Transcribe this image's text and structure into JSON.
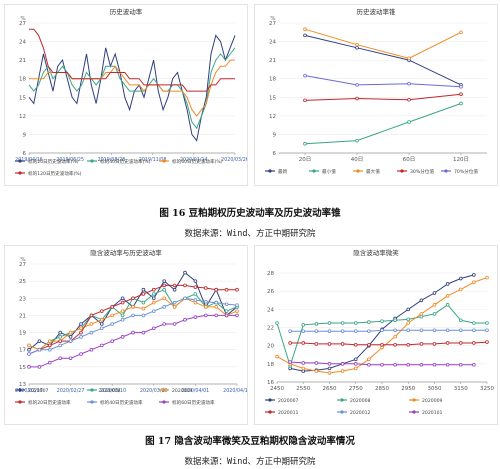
{
  "captions": {
    "fig16": "图 16  豆粕期权历史波动率及历史波动率锥",
    "fig17": "图 17  隐含波动率微笑及豆粕期权隐含波动率情况",
    "source": "数据来源：Wind、方正中期研究院"
  },
  "chart_data": [
    {
      "id": "hv_ts",
      "type": "line",
      "title": "历史波动率",
      "ylabel": "%",
      "ylim": [
        6,
        27
      ],
      "yticks": [
        6,
        9,
        12,
        15,
        18,
        21,
        24,
        27
      ],
      "xlabels": [
        "2019/04/16",
        "2019/06/25",
        "2019/08/28",
        "2019/11/08",
        "2020/01/14",
        "2020/03/26"
      ],
      "series": [
        {
          "name": "标的20日历史波动率(%)",
          "color": "#2f3f7f",
          "values": [
            15,
            14,
            18,
            22,
            19,
            16,
            20,
            21,
            18,
            15,
            14,
            18,
            22,
            17,
            14,
            18,
            23,
            20,
            22,
            19,
            15,
            13,
            16,
            17,
            15,
            18,
            21,
            16,
            13,
            15,
            18,
            19,
            16,
            13,
            9,
            8,
            12,
            15,
            22,
            25,
            24,
            21,
            23,
            25
          ]
        },
        {
          "name": "标的40日历史波动率(%)",
          "color": "#3aa687",
          "values": [
            17,
            16,
            17,
            19,
            20,
            18,
            19,
            20,
            19,
            17,
            16,
            17,
            19,
            18,
            17,
            18,
            20,
            20,
            20,
            18,
            17,
            16,
            16,
            16,
            16,
            17,
            18,
            17,
            16,
            16,
            17,
            17,
            16,
            14,
            11,
            10,
            12,
            14,
            19,
            21,
            22,
            21,
            22,
            23
          ]
        },
        {
          "name": "标的60日历史波动率(%)",
          "color": "#f08a24",
          "values": [
            18,
            18,
            18,
            18,
            19,
            19,
            19,
            19,
            19,
            18,
            18,
            18,
            18,
            18,
            18,
            18,
            19,
            19,
            20,
            19,
            18,
            17,
            17,
            17,
            16,
            17,
            17,
            17,
            16,
            16,
            16,
            16,
            16,
            15,
            13,
            12,
            13,
            14,
            17,
            19,
            20,
            20,
            21,
            21
          ]
        },
        {
          "name": "标的120日历史波动率(%)",
          "color": "#c0282c",
          "values": [
            26,
            26,
            25,
            23,
            20,
            19,
            19,
            19,
            19,
            18,
            18,
            18,
            18,
            18,
            18,
            18,
            18,
            19,
            19,
            19,
            19,
            18,
            18,
            18,
            17,
            17,
            17,
            17,
            17,
            17,
            17,
            17,
            17,
            16,
            16,
            16,
            16,
            16,
            17,
            17,
            18,
            18,
            18,
            18
          ]
        }
      ]
    },
    {
      "id": "hv_cone",
      "type": "line",
      "title": "历史波动率锥",
      "ylabel": "%",
      "ylim": [
        6,
        27
      ],
      "yticks": [
        6,
        9,
        12,
        15,
        18,
        21,
        24,
        27
      ],
      "categories": [
        "20日",
        "40日",
        "60日",
        "120日"
      ],
      "series": [
        {
          "name": "最新",
          "color": "#2f3f7f",
          "values": [
            25,
            23,
            21,
            17
          ]
        },
        {
          "name": "最小值",
          "color": "#3aa687",
          "values": [
            7.5,
            8,
            11,
            14
          ]
        },
        {
          "name": "最大值",
          "color": "#f08a24",
          "values": [
            26,
            23.5,
            21.3,
            25.5
          ]
        },
        {
          "name": "30%分位值",
          "color": "#c0282c",
          "values": [
            14.5,
            14.8,
            14.6,
            15.5
          ]
        },
        {
          "name": "70%分位值",
          "color": "#6b6bd6",
          "values": [
            18.5,
            17,
            17.2,
            16.7
          ]
        }
      ]
    },
    {
      "id": "iv_hv",
      "type": "line",
      "title": "隐含波动率与历史波动率",
      "ylabel": "%",
      "ylim": [
        13,
        27
      ],
      "yticks": [
        13,
        15,
        17,
        19,
        21,
        23,
        25,
        27
      ],
      "xlabels": [
        "2020/02/17",
        "2020/02/27",
        "2020/03/10",
        "2020/03/20",
        "2020/04/01",
        "2020/04/14"
      ],
      "series": [
        {
          "name": "2020007",
          "color": "#2f3f7f",
          "values": [
            17,
            18,
            17.5,
            19,
            18.5,
            20,
            21,
            20,
            22,
            23,
            22,
            24,
            23,
            25,
            24,
            26,
            25,
            22,
            24,
            21,
            22
          ]
        },
        {
          "name": "2020008",
          "color": "#3aa687",
          "values": [
            17.5,
            17,
            18,
            18.5,
            19,
            19.5,
            21,
            20.5,
            22,
            21,
            23,
            22.5,
            23.5,
            24,
            22,
            23,
            23.5,
            22,
            22.5,
            21.5,
            22
          ]
        },
        {
          "name": "2020009",
          "color": "#f08a24",
          "values": [
            17.5,
            17,
            18,
            18,
            19,
            19.5,
            20,
            20.5,
            21,
            21.5,
            22,
            21.8,
            22.5,
            23,
            22,
            23,
            22.5,
            22,
            22,
            21,
            21.5
          ]
        },
        {
          "name": "标的20日历史波动率",
          "color": "#c0282c",
          "values": [
            16.5,
            17,
            17.5,
            18,
            18,
            19,
            21,
            21.5,
            22,
            22.5,
            23,
            23.5,
            24,
            24.5,
            24.5,
            24.5,
            24.3,
            24.2,
            24,
            24,
            24
          ]
        },
        {
          "name": "标的40日历史波动率",
          "color": "#6b8fd6",
          "values": [
            16.5,
            17,
            17,
            17.5,
            18,
            18.5,
            19,
            19.5,
            20,
            20.5,
            21,
            21,
            21.5,
            22,
            22.5,
            23,
            22.8,
            22.6,
            22.5,
            22.3,
            22.2
          ]
        },
        {
          "name": "标的60日历史波动率",
          "color": "#9a3fc0",
          "values": [
            15,
            15,
            15.5,
            16,
            16,
            16.5,
            17,
            17.5,
            18,
            18.5,
            19,
            19,
            19.5,
            20,
            20,
            20.5,
            20.8,
            21,
            21,
            21,
            21
          ]
        }
      ]
    },
    {
      "id": "iv_smile",
      "type": "line",
      "title": "隐含波动率微笑",
      "ylim": [
        16,
        29
      ],
      "yticks": [
        16,
        18,
        20,
        22,
        24,
        26,
        28
      ],
      "x": [
        2450,
        2550,
        2650,
        2750,
        2850,
        2950,
        3050,
        3150,
        3250
      ],
      "xlabels": [
        "2450",
        "2550",
        "2650",
        "2750",
        "2850",
        "2950",
        "3050",
        "3150",
        "3250"
      ],
      "series": [
        {
          "name": "2020007",
          "color": "#2f3f7f",
          "x": [
            2500,
            2550,
            2600,
            2650,
            2700,
            2750,
            2800,
            2850,
            2900,
            2950,
            3000,
            3050,
            3100,
            3150,
            3200
          ],
          "values": [
            17.5,
            17.2,
            17.3,
            17.5,
            18,
            18.5,
            20,
            21.8,
            23,
            24,
            25,
            25.8,
            26.8,
            27.4,
            27.8
          ]
        },
        {
          "name": "2020008",
          "color": "#3aa687",
          "x": [
            2450,
            2500,
            2550,
            2600,
            2650,
            2700,
            2750,
            2800,
            2850,
            2900,
            2950,
            3000,
            3050,
            3100,
            3150,
            3200,
            3250
          ],
          "values": [
            22.5,
            17.8,
            22.3,
            22.4,
            22.5,
            22.5,
            22.5,
            22.6,
            22.7,
            22.8,
            22.9,
            23.2,
            23.5,
            24.5,
            22.8,
            22.5,
            22.5
          ]
        },
        {
          "name": "2020009",
          "color": "#f08a24",
          "x": [
            2450,
            2500,
            2550,
            2600,
            2650,
            2700,
            2750,
            2800,
            2850,
            2900,
            2950,
            3000,
            3050,
            3100,
            3150,
            3200,
            3250
          ],
          "values": [
            18.8,
            18,
            17.5,
            17.2,
            17,
            17.2,
            17.5,
            18.5,
            19.8,
            21,
            22.5,
            23.5,
            24.5,
            25.5,
            26.2,
            27,
            27.5
          ]
        },
        {
          "name": "2020011",
          "color": "#c0282c",
          "x": [
            2500,
            2550,
            2600,
            2650,
            2700,
            2750,
            2800,
            2850,
            2900,
            2950,
            3000,
            3050,
            3100,
            3150,
            3200,
            3250
          ],
          "values": [
            20.3,
            20.3,
            20.2,
            20.2,
            20.2,
            20.1,
            20.1,
            20.1,
            20.1,
            20.1,
            20.2,
            20.2,
            20.3,
            20.3,
            20.3,
            20.4
          ]
        },
        {
          "name": "2020012",
          "color": "#6b8fd6",
          "x": [
            2500,
            2550,
            2600,
            2650,
            2700,
            2750,
            2800,
            2850,
            2900,
            2950,
            3000,
            3050,
            3100,
            3150,
            3200,
            3250
          ],
          "values": [
            21.6,
            21.6,
            21.6,
            21.6,
            21.6,
            21.6,
            21.6,
            21.7,
            21.7,
            21.7,
            21.7,
            21.7,
            21.7,
            21.7,
            21.7,
            21.7
          ]
        },
        {
          "name": "2020101",
          "color": "#9a3fc0",
          "x": [
            2500,
            2550,
            2600,
            2650,
            2700,
            2750,
            2800,
            2850,
            2900,
            2950,
            3000,
            3050,
            3100,
            3150,
            3200
          ],
          "values": [
            18.2,
            18.1,
            18.1,
            18,
            18,
            18,
            17.9,
            17.9,
            17.9,
            17.9,
            17.9,
            17.9,
            17.9,
            17.9,
            17.9
          ]
        }
      ]
    }
  ]
}
